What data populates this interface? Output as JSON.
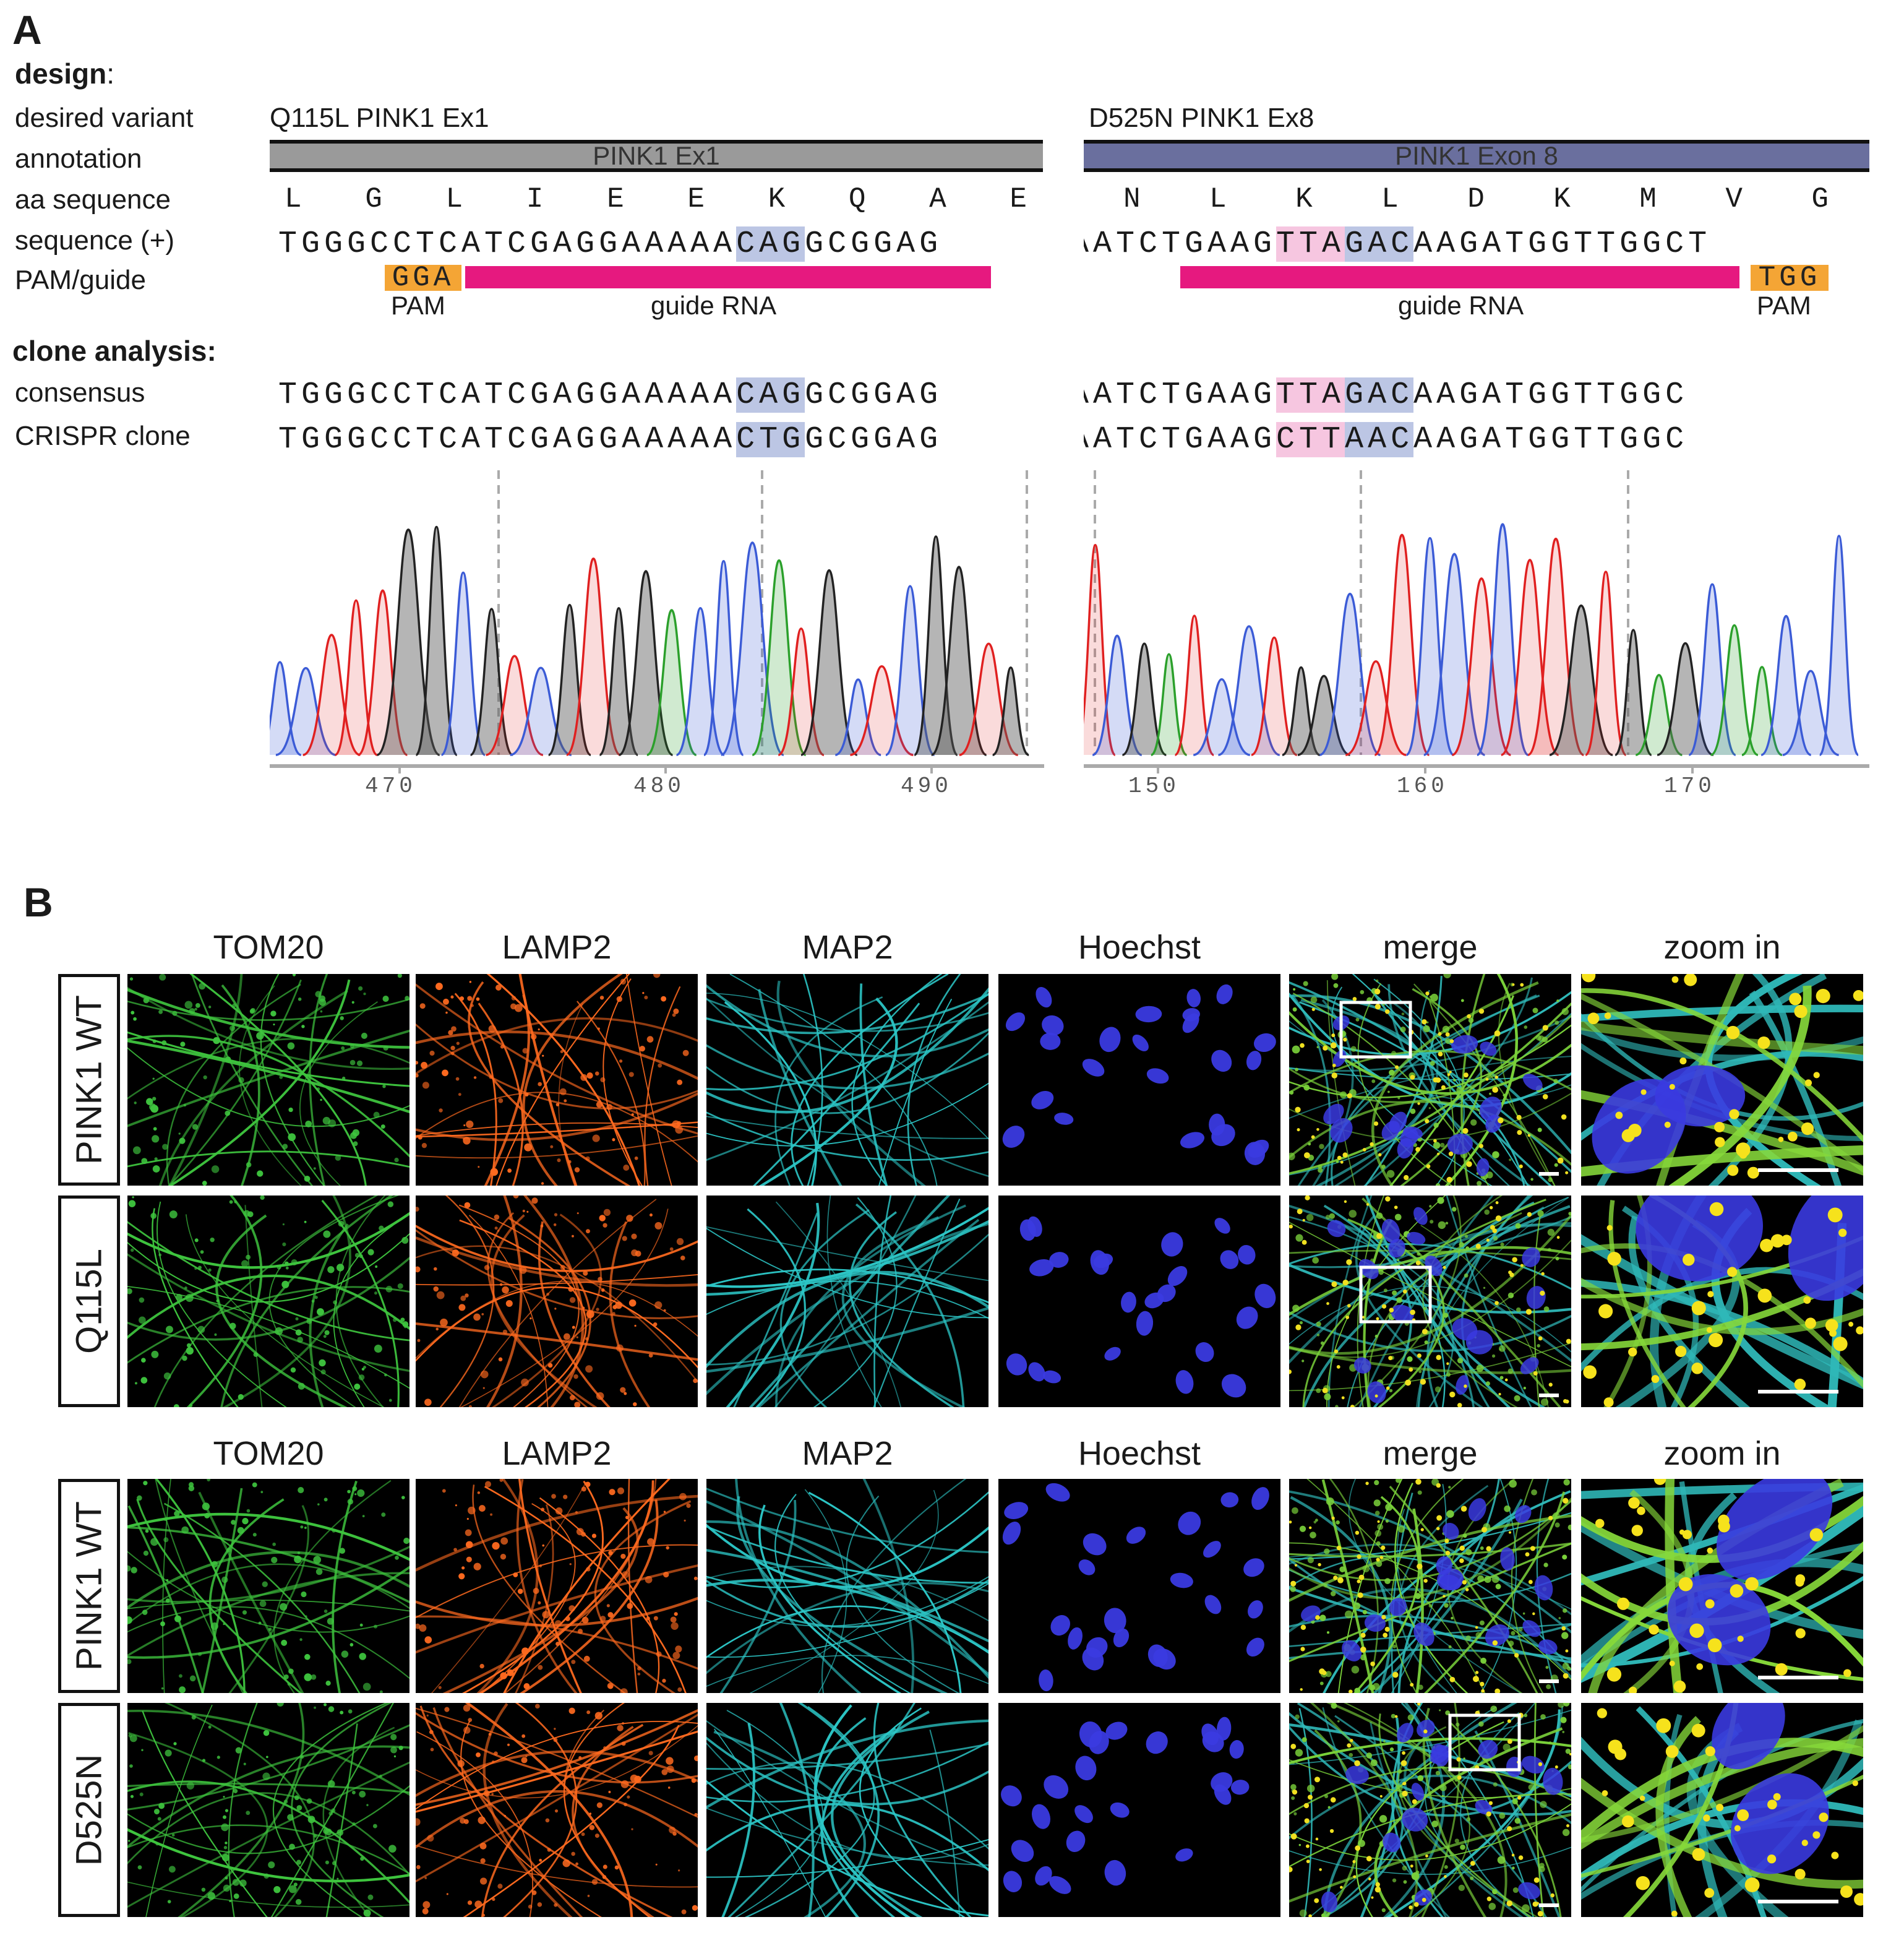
{
  "panel_a": {
    "letter": "A",
    "design_heading": "design",
    "design_colon": ":",
    "row_labels": [
      "desired variant",
      "annotation",
      "aa sequence",
      "sequence (+)",
      "PAM/guide"
    ],
    "clone_heading": "clone analysis:",
    "clone_labels": [
      "consensus",
      "CRISPR clone"
    ],
    "left": {
      "variant": "Q115L PINK1 Ex1",
      "annotation": "PINK1 Ex1",
      "annotation_color": "#9a9a9a",
      "aa": [
        "L",
        "G",
        "L",
        "I",
        "E",
        "E",
        "K",
        "Q",
        "A",
        "E"
      ],
      "seq_pre": "TGGGCCTCATCGAGGAAAAA",
      "seq_hl": "CAG",
      "seq_post": "GCGGAG",
      "pam": "GGA",
      "pam_label": "PAM",
      "guide_label": "guide RNA",
      "consensus_pre": "TGGGCCTCATCGAGGAAAAA",
      "consensus_hl": "CAG",
      "consensus_post": "GCGGAG",
      "clone_pre": "TGGGCCTCATCGAGGAAAAA",
      "clone_hl": "CTG",
      "clone_post": "GCGGAG",
      "ticks": [
        "470",
        "480",
        "490"
      ]
    },
    "right": {
      "variant": "D525N PINK1 Ex8",
      "annotation": "PINK1 Exon 8",
      "annotation_color": "#6a6f9e",
      "aa": [
        "N",
        "L",
        "K",
        "L",
        "D",
        "K",
        "M",
        "V",
        "G"
      ],
      "seq_pre": "AATCTGAAG",
      "seq_hl1": "TTA",
      "seq_hl2": "GAC",
      "seq_post": "AAGATGGTTGGCT",
      "pam": "TGG",
      "pam_label": "PAM",
      "guide_label": "guide RNA",
      "consensus_pre": "AATCTGAAG",
      "consensus_hl1": "TTA",
      "consensus_hl2": "GAC",
      "consensus_post": "AAGATGGTTGGC",
      "clone_pre": "AATCTGAAG",
      "clone_hl1": "CTT",
      "clone_hl2": "AAC",
      "clone_post": "AAGATGGTTGGC",
      "ticks": [
        "150",
        "160",
        "170"
      ]
    },
    "trace_colors": {
      "A": "#2ba02b",
      "C": "#3b5bd6",
      "G": "#222222",
      "T": "#e02020"
    }
  },
  "panel_b": {
    "letter": "B",
    "columns": [
      "TOM20",
      "LAMP2",
      "MAP2",
      "Hoechst",
      "merge",
      "zoom in"
    ],
    "group1_rows": [
      "PINK1 WT",
      "Q115L"
    ],
    "group2_rows": [
      "PINK1 WT",
      "D525N"
    ],
    "channel_colors": {
      "TOM20": "#3ec43e",
      "LAMP2": "#ff6a1f",
      "MAP2": "#2cc6c6",
      "Hoechst": "#3a3ae0"
    }
  }
}
